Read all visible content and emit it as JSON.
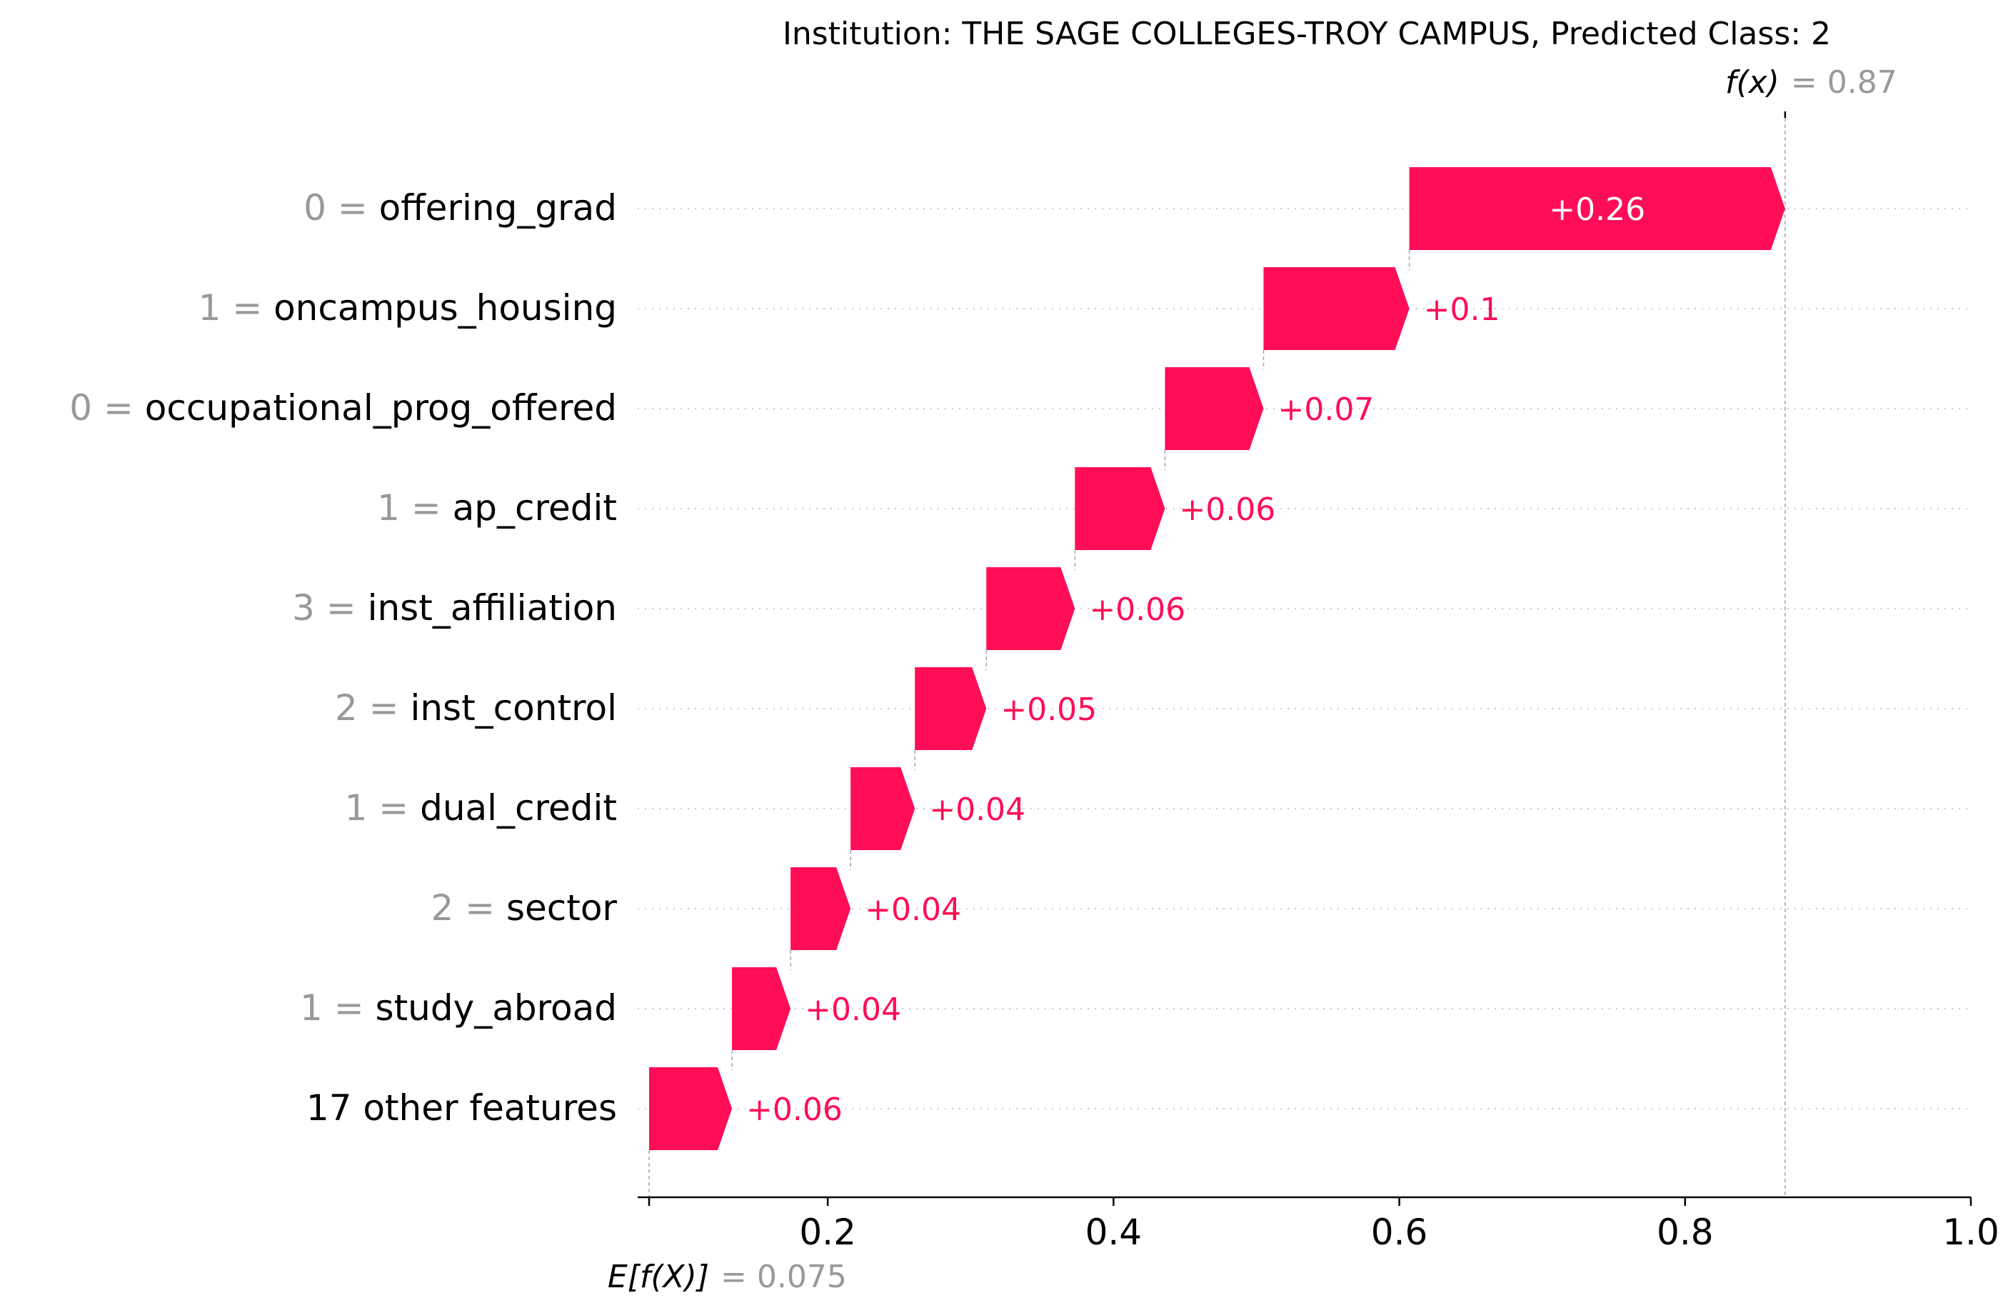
{
  "chart_data": {
    "type": "waterfall",
    "title": "Institution: THE SAGE COLLEGES-TROY CAMPUS, Predicted Class: 2",
    "fx": {
      "label": "f(x)",
      "value_text": "= 0.87",
      "value": 0.87
    },
    "base": {
      "label": "E[f(X)]",
      "value_text": "= 0.075",
      "value": 0.075
    },
    "xlim": [
      0.067,
      1.0
    ],
    "xticks": [
      {
        "value": 0.2,
        "label": "0.2"
      },
      {
        "value": 0.4,
        "label": "0.4"
      },
      {
        "value": 0.6,
        "label": "0.6"
      },
      {
        "value": 0.8,
        "label": "0.8"
      },
      {
        "value": 1.0,
        "label": "1.0"
      }
    ],
    "positive_color": "#ff0d57",
    "features": [
      {
        "value": "0 =",
        "name": "offering_grad",
        "contribution": 0.26,
        "contribution_label": "+0.26",
        "start": 0.607,
        "end": 0.87
      },
      {
        "value": "1 =",
        "name": "oncampus_housing",
        "contribution": 0.1,
        "contribution_label": "+0.1",
        "start": 0.505,
        "end": 0.607
      },
      {
        "value": "0 =",
        "name": "occupational_prog_offered",
        "contribution": 0.07,
        "contribution_label": "+0.07",
        "start": 0.436,
        "end": 0.505
      },
      {
        "value": "1 =",
        "name": "ap_credit",
        "contribution": 0.06,
        "contribution_label": "+0.06",
        "start": 0.373,
        "end": 0.436
      },
      {
        "value": "3 =",
        "name": "inst_affiliation",
        "contribution": 0.06,
        "contribution_label": "+0.06",
        "start": 0.311,
        "end": 0.373
      },
      {
        "value": "2 =",
        "name": "inst_control",
        "contribution": 0.05,
        "contribution_label": "+0.05",
        "start": 0.261,
        "end": 0.311
      },
      {
        "value": "1 =",
        "name": "dual_credit",
        "contribution": 0.04,
        "contribution_label": "+0.04",
        "start": 0.216,
        "end": 0.261
      },
      {
        "value": "2 =",
        "name": "sector",
        "contribution": 0.04,
        "contribution_label": "+0.04",
        "start": 0.174,
        "end": 0.216
      },
      {
        "value": "1 =",
        "name": "study_abroad",
        "contribution": 0.04,
        "contribution_label": "+0.04",
        "start": 0.133,
        "end": 0.174
      },
      {
        "value": "",
        "name": "17 other features",
        "contribution": 0.06,
        "contribution_label": "+0.06",
        "start": 0.075,
        "end": 0.133
      }
    ]
  }
}
